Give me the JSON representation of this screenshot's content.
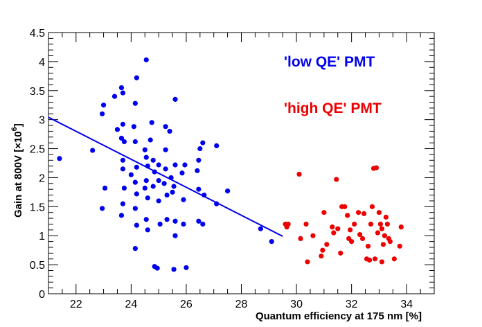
{
  "chart_data": {
    "type": "scatter",
    "title": "",
    "xlabel": "Quantum efficiency at 175 nm [%]",
    "ylabel": "Gain at 800V [×10",
    "ylabel_exp": "6",
    "ylabel_close": "]",
    "xlim": [
      21,
      35
    ],
    "ylim": [
      0,
      4.5
    ],
    "x_ticks": [
      22,
      24,
      26,
      28,
      30,
      32,
      34
    ],
    "x_tick_labels": [
      "22",
      "24",
      "26",
      "28",
      "30",
      "32",
      "34"
    ],
    "y_ticks": [
      0,
      0.5,
      1,
      1.5,
      2,
      2.5,
      3,
      3.5,
      4,
      4.5
    ],
    "y_tick_labels": [
      "0",
      "0.5",
      "1",
      "1.5",
      "2",
      "2.5",
      "3",
      "3.5",
      "4",
      "4.5"
    ],
    "grid": false,
    "legend": [
      {
        "label": "'low QE' PMT",
        "color": "#0000ee"
      },
      {
        "label": "'high QE' PMT",
        "color": "#ee0000"
      }
    ],
    "series": [
      {
        "name": "'low QE' PMT",
        "color": "#0000ee",
        "points": [
          [
            21.4,
            2.33
          ],
          [
            22.6,
            2.47
          ],
          [
            23.0,
            3.25
          ],
          [
            22.95,
            3.1
          ],
          [
            22.95,
            1.47
          ],
          [
            23.05,
            1.82
          ],
          [
            23.4,
            3.4
          ],
          [
            23.5,
            2.83
          ],
          [
            23.65,
            3.55
          ],
          [
            23.7,
            3.46
          ],
          [
            23.7,
            2.92
          ],
          [
            23.65,
            2.68
          ],
          [
            23.75,
            2.62
          ],
          [
            23.7,
            2.3
          ],
          [
            23.7,
            2.15
          ],
          [
            23.75,
            1.82
          ],
          [
            23.7,
            1.55
          ],
          [
            23.65,
            1.35
          ],
          [
            24.0,
            2.05
          ],
          [
            24.1,
            2.88
          ],
          [
            24.15,
            3.28
          ],
          [
            24.2,
            3.72
          ],
          [
            24.15,
            2.62
          ],
          [
            24.2,
            2.18
          ],
          [
            24.15,
            1.92
          ],
          [
            24.2,
            1.72
          ],
          [
            24.15,
            1.47
          ],
          [
            24.2,
            1.18
          ],
          [
            24.15,
            0.78
          ],
          [
            24.55,
            4.03
          ],
          [
            24.5,
            2.48
          ],
          [
            24.55,
            2.35
          ],
          [
            24.6,
            2.2
          ],
          [
            24.55,
            1.95
          ],
          [
            24.5,
            1.82
          ],
          [
            24.6,
            1.65
          ],
          [
            24.55,
            1.28
          ],
          [
            24.6,
            1.1
          ],
          [
            24.7,
            2.65
          ],
          [
            24.75,
            2.95
          ],
          [
            24.8,
            2.3
          ],
          [
            24.85,
            2.1
          ],
          [
            24.8,
            1.85
          ],
          [
            24.85,
            0.47
          ],
          [
            24.95,
            0.44
          ],
          [
            25.0,
            2.22
          ],
          [
            25.0,
            1.95
          ],
          [
            25.0,
            1.6
          ],
          [
            25.05,
            1.2
          ],
          [
            25.25,
            2.88
          ],
          [
            25.25,
            2.48
          ],
          [
            25.25,
            2.15
          ],
          [
            25.2,
            1.9
          ],
          [
            25.3,
            1.7
          ],
          [
            25.3,
            1.28
          ],
          [
            25.4,
            2.8
          ],
          [
            25.45,
            2.0
          ],
          [
            25.5,
            1.75
          ],
          [
            25.55,
            0.42
          ],
          [
            25.6,
            3.35
          ],
          [
            25.6,
            2.22
          ],
          [
            25.55,
            1.85
          ],
          [
            25.6,
            1.25
          ],
          [
            25.6,
            1.0
          ],
          [
            25.85,
            2.08
          ],
          [
            25.9,
            1.62
          ],
          [
            25.9,
            1.2
          ],
          [
            25.95,
            2.22
          ],
          [
            26.0,
            0.45
          ],
          [
            26.4,
            2.12
          ],
          [
            26.45,
            2.3
          ],
          [
            26.45,
            1.8
          ],
          [
            26.45,
            1.25
          ],
          [
            26.5,
            2.5
          ],
          [
            26.6,
            2.6
          ],
          [
            26.6,
            1.2
          ],
          [
            26.65,
            1.7
          ],
          [
            27.1,
            2.55
          ],
          [
            27.1,
            1.55
          ],
          [
            27.5,
            1.77
          ],
          [
            28.7,
            1.12
          ],
          [
            29.1,
            0.9
          ]
        ],
        "fit_line": [
          [
            21.0,
            3.04
          ],
          [
            29.5,
            0.99
          ]
        ]
      },
      {
        "name": "'high QE' PMT",
        "color": "#ee0000",
        "points": [
          [
            29.6,
            1.2
          ],
          [
            29.65,
            1.15
          ],
          [
            29.7,
            1.2
          ],
          [
            30.1,
            2.06
          ],
          [
            30.15,
            0.95
          ],
          [
            30.35,
            1.2
          ],
          [
            30.4,
            0.55
          ],
          [
            30.6,
            1.0
          ],
          [
            30.9,
            0.65
          ],
          [
            30.95,
            0.75
          ],
          [
            31.0,
            1.4
          ],
          [
            31.1,
            0.85
          ],
          [
            31.3,
            1.15
          ],
          [
            31.35,
            1.05
          ],
          [
            31.45,
            1.97
          ],
          [
            31.5,
            1.12
          ],
          [
            31.6,
            0.7
          ],
          [
            31.65,
            1.5
          ],
          [
            31.75,
            1.5
          ],
          [
            31.85,
            1.35
          ],
          [
            31.95,
            1.1
          ],
          [
            31.9,
            0.95
          ],
          [
            32.0,
            0.9
          ],
          [
            32.25,
            1.4
          ],
          [
            32.3,
            1.02
          ],
          [
            32.4,
            0.95
          ],
          [
            32.45,
            1.38
          ],
          [
            32.55,
            0.6
          ],
          [
            32.6,
            0.82
          ],
          [
            32.7,
            1.2
          ],
          [
            32.75,
            1.5
          ],
          [
            32.8,
            2.16
          ],
          [
            32.9,
            2.17
          ],
          [
            32.95,
            1.05
          ],
          [
            33.0,
            1.4
          ],
          [
            33.05,
            1.2
          ],
          [
            33.1,
            0.55
          ],
          [
            33.1,
            1.12
          ],
          [
            33.15,
            0.85
          ],
          [
            33.25,
            1.32
          ],
          [
            33.3,
            1.2
          ],
          [
            33.35,
            0.95
          ],
          [
            33.4,
            0.9
          ],
          [
            33.55,
            0.6
          ],
          [
            33.8,
            1.15
          ],
          [
            33.75,
            0.82
          ],
          [
            32.65,
            0.58
          ],
          [
            32.85,
            0.6
          ],
          [
            33.2,
            1.0
          ],
          [
            32.1,
            1.2
          ]
        ]
      }
    ]
  }
}
